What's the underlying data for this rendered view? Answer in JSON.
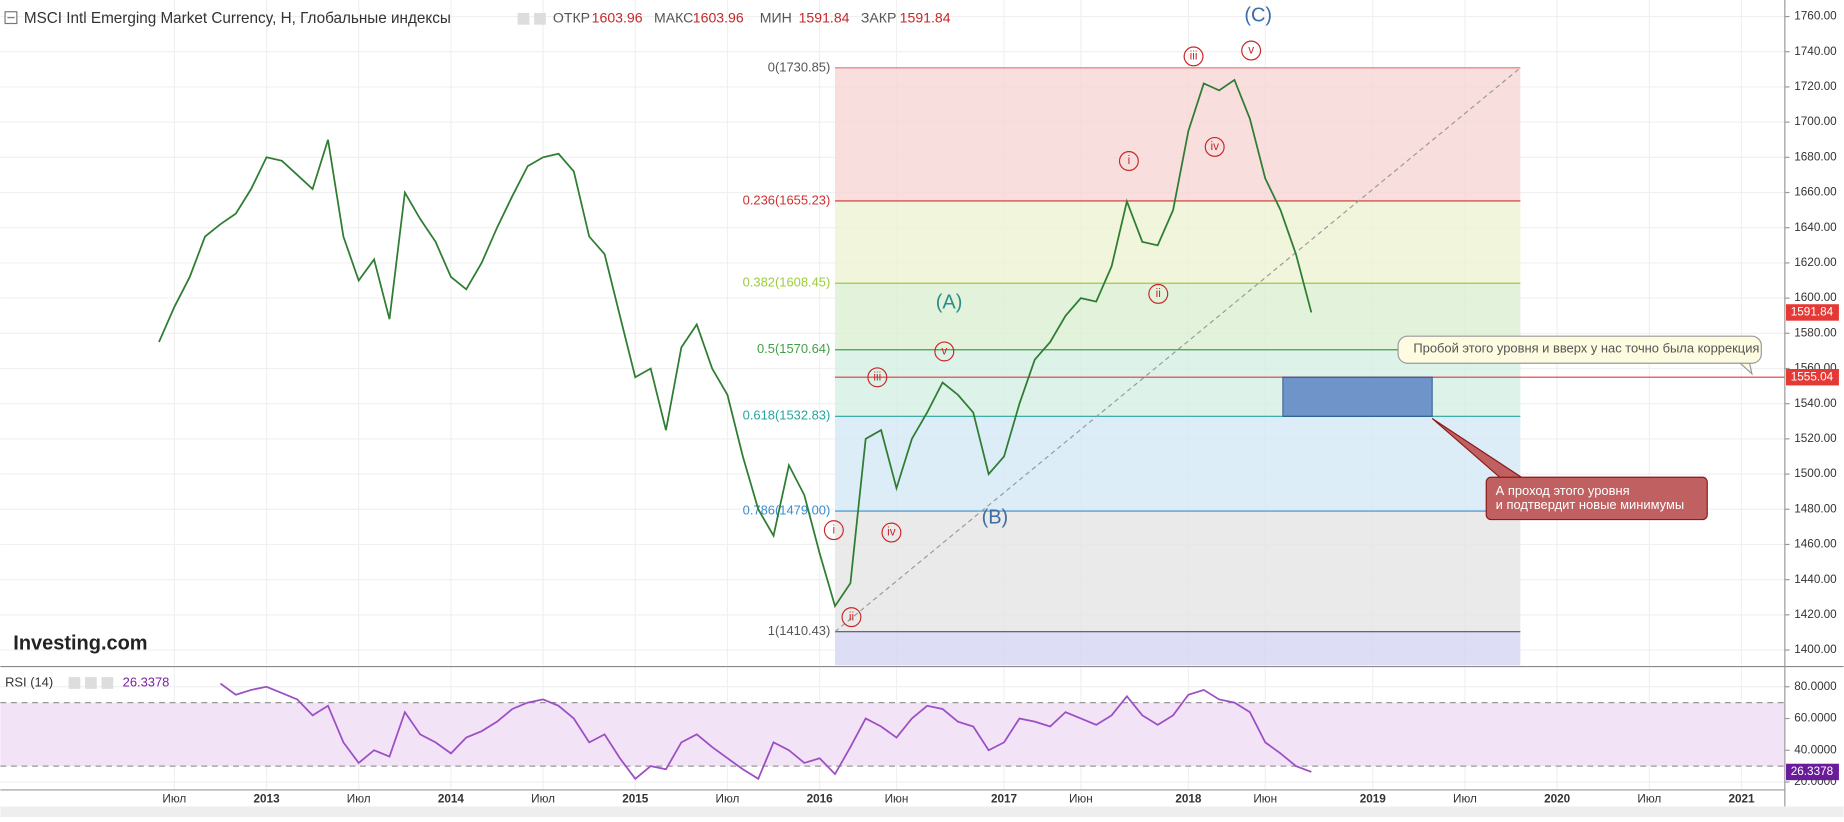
{
  "chart_data": [
    {
      "type": "line",
      "title": "MSCI Intl Emerging Market Currency, H, Глобальные индексы",
      "quote": [
        {
          "label": "ОТКР",
          "value": 1603.96
        },
        {
          "label": "МАКС",
          "value": 1603.96
        },
        {
          "label": "МИН",
          "value": 1591.84
        },
        {
          "label": "ЗАКР",
          "value": 1591.84
        }
      ],
      "categories": [
        null,
        "Июл",
        null,
        null,
        null,
        null,
        null,
        "2013",
        null,
        null,
        null,
        null,
        null,
        "Июл",
        null,
        null,
        null,
        null,
        null,
        "2014",
        null,
        null,
        null,
        null,
        null,
        "Июл",
        null,
        null,
        null,
        null,
        null,
        "2015",
        null,
        null,
        null,
        null,
        null,
        "Июл",
        null,
        null,
        null,
        null,
        null,
        "2016",
        null,
        null,
        null,
        null,
        "Июн",
        null,
        null,
        null,
        null,
        null,
        null,
        "2017",
        null,
        null,
        null,
        null,
        "Июн",
        null,
        null,
        null,
        null,
        null,
        null,
        "2018",
        null,
        null,
        null,
        null,
        "Июн",
        null,
        null,
        null,
        null,
        null,
        null,
        "2019",
        null,
        null,
        null,
        null,
        null,
        "Июл",
        null,
        null,
        null,
        null,
        null,
        "2020",
        null,
        null,
        null,
        null,
        null,
        "Июл",
        null,
        null,
        null,
        null,
        null,
        "2021",
        null,
        null
      ],
      "values": [
        1575,
        1595,
        1612,
        1635,
        1642,
        1648,
        1662,
        1680,
        1678,
        1670,
        1662,
        1690,
        1635,
        1610,
        1622,
        1588,
        1660,
        1645,
        1632,
        1612,
        1605,
        1620,
        1640,
        1658,
        1675,
        1680,
        1682,
        1672,
        1635,
        1625,
        1590,
        1555,
        1560,
        1525,
        1572,
        1585,
        1560,
        1545,
        1510,
        1480,
        1465,
        1505,
        1488,
        1455,
        1425,
        1438,
        1520,
        1525,
        1492,
        1520,
        1535,
        1552,
        1545,
        1535,
        1500,
        1510,
        1540,
        1565,
        1575,
        1590,
        1600,
        1598,
        1618,
        1655,
        1632,
        1630,
        1650,
        1695,
        1722,
        1718,
        1724,
        1702,
        1668,
        1650,
        1625,
        1591.84,
        null,
        null,
        null,
        null,
        null,
        null,
        null,
        null,
        null,
        null,
        null,
        null,
        null,
        null,
        null,
        null,
        null,
        null,
        null,
        null,
        null,
        null,
        null,
        null,
        null,
        null,
        null,
        null,
        null,
        null
      ],
      "color": "#2f7d32",
      "ylim": [
        1391.3,
        1769.4
      ],
      "yticks": [
        {
          "value": 1400,
          "label": "1400.00"
        },
        {
          "value": 1420,
          "label": "1420.00"
        },
        {
          "value": 1440,
          "label": "1440.00"
        },
        {
          "value": 1460,
          "label": "1460.00"
        },
        {
          "value": 1480,
          "label": "1480.00"
        },
        {
          "value": 1500,
          "label": "1500.00"
        },
        {
          "value": 1520,
          "label": "1520.00"
        },
        {
          "value": 1540,
          "label": "1540.00"
        },
        {
          "value": 1560,
          "label": "1560.00"
        },
        {
          "value": 1580,
          "label": "1580.00"
        },
        {
          "value": 1600,
          "label": "1600.00"
        },
        {
          "value": 1620,
          "label": "1620.00"
        },
        {
          "value": 1640,
          "label": "1640.00"
        },
        {
          "value": 1660,
          "label": "1660.00"
        },
        {
          "value": 1680,
          "label": "1680.00"
        },
        {
          "value": 1700,
          "label": "1700.00"
        },
        {
          "value": 1720,
          "label": "1720.00"
        },
        {
          "value": 1740,
          "label": "1740.00"
        },
        {
          "value": 1760,
          "label": "1760.00"
        }
      ],
      "grid": true,
      "fib": [
        {
          "value": 1730.85,
          "label": "0(1730.85)",
          "color": "#e57373",
          "zone_color": "#f7d6d6"
        },
        {
          "value": 1655.23,
          "label": "0.236(1655.23)",
          "color": "#d32f2f",
          "zone_color": "#eef3d2"
        },
        {
          "value": 1608.45,
          "label": "0.382(1608.45)",
          "color": "#9ccc3c",
          "zone_color": "#dcf0d2"
        },
        {
          "value": 1570.64,
          "label": "0.5(1570.64)",
          "color": "#43a047",
          "zone_color": "#d4f0e4"
        },
        {
          "value": 1532.83,
          "label": "0.618(1532.83)",
          "color": "#26a69a",
          "zone_color": "#d4e9f5"
        },
        {
          "value": 1479.0,
          "label": "0.786(1479.00)",
          "color": "#3b8ed0",
          "zone_color": "#e5e5e5"
        },
        {
          "value": 1410.43,
          "label": "1(1410.43)",
          "color": "#555555",
          "zone_color": "#d4d4f2"
        }
      ],
      "hline": {
        "value": 1555.04,
        "color": "#e53935"
      },
      "waves": [
        "(C)",
        "iii",
        "v",
        "i",
        "iv",
        "ii",
        "(A)",
        "v",
        "iii",
        "(B)",
        "i",
        "iv",
        "ii"
      ],
      "notes": [
        "Пробой этого уровня и вверх у нас точно была коррекция",
        "А проход этого уровня",
        "и подтвердит новые минимумы"
      ],
      "logo": "Investing.com"
    },
    {
      "type": "line",
      "title": "RSI (14)",
      "values": [
        null,
        null,
        null,
        null,
        82,
        75,
        78,
        80,
        76,
        72,
        62,
        68,
        45,
        32,
        40,
        36,
        64,
        50,
        45,
        38,
        48,
        52,
        58,
        66,
        70,
        72,
        68,
        60,
        45,
        50,
        35,
        22,
        30,
        28,
        45,
        50,
        42,
        35,
        28,
        22,
        45,
        40,
        32,
        35,
        25,
        42,
        60,
        55,
        48,
        60,
        68,
        66,
        58,
        55,
        40,
        45,
        60,
        58,
        55,
        64,
        60,
        56,
        62,
        74,
        62,
        56,
        62,
        75,
        78,
        72,
        70,
        64,
        45,
        38,
        30,
        26.3378
      ],
      "color": "#9c4fc4",
      "ylim": [
        15,
        92
      ],
      "yticks": [
        {
          "value": 20,
          "label": "20.0000"
        },
        {
          "value": 40,
          "label": "40.0000"
        },
        {
          "value": 60,
          "label": "60.0000"
        },
        {
          "value": 80,
          "label": "80.0000"
        }
      ],
      "band": [
        30,
        70
      ]
    }
  ]
}
